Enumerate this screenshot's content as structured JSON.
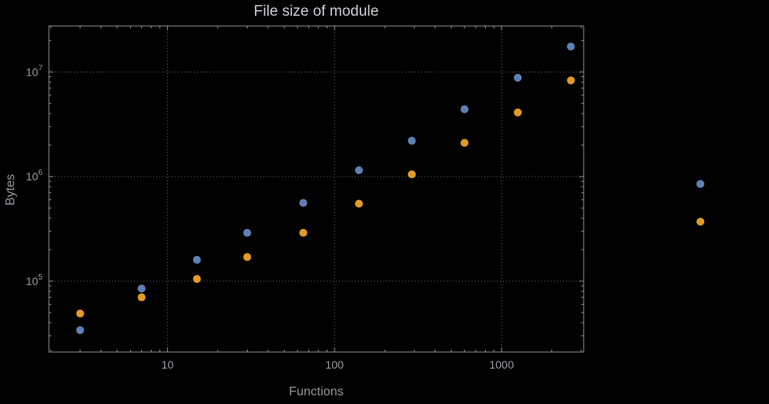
{
  "chart_data": {
    "type": "scatter",
    "title": "File size of module",
    "xlabel": "Functions",
    "ylabel": "Bytes",
    "x_scale": "log",
    "y_scale": "log",
    "grid": true,
    "legend": "none",
    "x_range": [
      1.95,
      3100
    ],
    "y_range": [
      21000,
      27500000
    ],
    "x": [
      3,
      7,
      15,
      30,
      65,
      140,
      290,
      600,
      1250,
      2600,
      15500
    ],
    "series": [
      {
        "name": "blue",
        "color": "#5e81b5",
        "values": [
          34000,
          85000,
          160000,
          290000,
          560000,
          1150000,
          2200000,
          4400000,
          8800000,
          17500000,
          850000
        ]
      },
      {
        "name": "orange",
        "color": "#e19c24",
        "values": [
          49000,
          70000,
          105000,
          170000,
          290000,
          550000,
          1050000,
          2100000,
          4100000,
          8300000,
          370000
        ]
      }
    ],
    "x_ticks": [
      {
        "value": 10,
        "label": "10"
      },
      {
        "value": 100,
        "label": "100"
      },
      {
        "value": 1000,
        "label": "1000"
      }
    ],
    "y_ticks": [
      {
        "value": 100000,
        "base": "10",
        "exp": "5"
      },
      {
        "value": 1000000,
        "base": "10",
        "exp": "6"
      },
      {
        "value": 10000000,
        "base": "10",
        "exp": "7"
      }
    ]
  },
  "style": {
    "background": "#000000",
    "frame_color": "#8b9197",
    "grid_color": "#5e6468",
    "title_color": "#c9ced2",
    "label_color": "#8f969c",
    "tick_label_color": "#979ca1"
  }
}
